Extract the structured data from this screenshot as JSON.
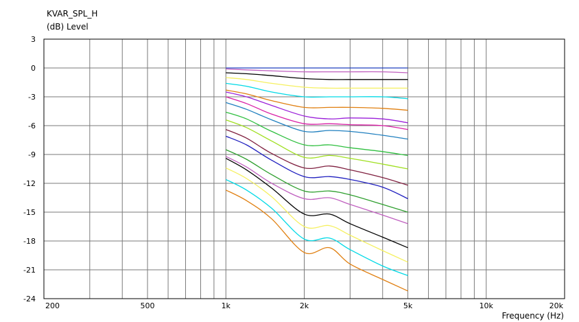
{
  "chart_data": {
    "type": "line",
    "title": "KVAR_SPL_H",
    "ylabel": "(dB)  Level",
    "xlabel": "Frequency  (Hz)",
    "x_scale": "log",
    "xlim": [
      200,
      20000
    ],
    "ylim": [
      -24,
      3
    ],
    "y_ticks": [
      3,
      0,
      -3,
      -6,
      -9,
      -12,
      -15,
      -18,
      -21,
      -24
    ],
    "x_tick_labels": [
      {
        "value": 200,
        "label": "200"
      },
      {
        "value": 500,
        "label": "500"
      },
      {
        "value": 1000,
        "label": "1k"
      },
      {
        "value": 2000,
        "label": "2k"
      },
      {
        "value": 5000,
        "label": "5k"
      },
      {
        "value": 10000,
        "label": "10k"
      },
      {
        "value": 20000,
        "label": "20k"
      }
    ],
    "grid": true,
    "x": [
      1000,
      1200,
      1500,
      2000,
      2500,
      3000,
      4000,
      5000
    ],
    "series": [
      {
        "color": "#1f3fbf",
        "values": [
          0.0,
          0.0,
          0.0,
          0.0,
          0.0,
          0.0,
          0.0,
          0.0
        ]
      },
      {
        "color": "#bf5fbf",
        "values": [
          -0.1,
          -0.2,
          -0.3,
          -0.4,
          -0.4,
          -0.4,
          -0.4,
          -0.5
        ]
      },
      {
        "color": "#000000",
        "values": [
          -0.5,
          -0.6,
          -0.8,
          -1.1,
          -1.2,
          -1.2,
          -1.2,
          -1.2
        ]
      },
      {
        "color": "#f5f05f",
        "values": [
          -1.0,
          -1.2,
          -1.6,
          -2.0,
          -2.1,
          -2.1,
          -2.1,
          -2.1
        ]
      },
      {
        "color": "#00d9e6",
        "values": [
          -1.6,
          -1.9,
          -2.5,
          -3.0,
          -3.0,
          -3.0,
          -3.0,
          -3.2
        ]
      },
      {
        "color": "#e07f10",
        "values": [
          -2.3,
          -2.7,
          -3.4,
          -4.1,
          -4.1,
          -4.1,
          -4.2,
          -4.4
        ]
      },
      {
        "color": "#9a1fd9",
        "values": [
          -2.5,
          -3.0,
          -3.9,
          -5.0,
          -5.3,
          -5.2,
          -5.3,
          -5.7
        ]
      },
      {
        "color": "#d91fa6",
        "values": [
          -3.0,
          -3.7,
          -4.8,
          -5.8,
          -5.8,
          -5.9,
          -6.0,
          -6.4
        ]
      },
      {
        "color": "#1f7fbf",
        "values": [
          -3.6,
          -4.3,
          -5.4,
          -6.6,
          -6.5,
          -6.6,
          -7.0,
          -7.4
        ]
      },
      {
        "color": "#2fbf3f",
        "values": [
          -4.6,
          -5.3,
          -6.6,
          -8.0,
          -8.0,
          -8.3,
          -8.7,
          -9.1
        ]
      },
      {
        "color": "#9fdf1f",
        "values": [
          -5.4,
          -6.2,
          -7.6,
          -9.3,
          -9.1,
          -9.4,
          -10.0,
          -10.5
        ]
      },
      {
        "color": "#7f1f3f",
        "values": [
          -6.4,
          -7.3,
          -8.9,
          -10.4,
          -10.2,
          -10.6,
          -11.4,
          -12.2
        ]
      },
      {
        "color": "#1f1fbf",
        "values": [
          -7.1,
          -8.0,
          -9.6,
          -11.3,
          -11.3,
          -11.6,
          -12.4,
          -13.6
        ]
      },
      {
        "color": "#2f9f2f",
        "values": [
          -8.5,
          -9.5,
          -11.1,
          -12.8,
          -12.8,
          -13.2,
          -14.2,
          -15.0
        ]
      },
      {
        "color": "#bf5fbf",
        "values": [
          -9.2,
          -10.3,
          -12.0,
          -13.6,
          -13.5,
          -14.2,
          -15.3,
          -16.2
        ]
      },
      {
        "color": "#000000",
        "values": [
          -9.4,
          -10.6,
          -12.5,
          -15.2,
          -15.2,
          -16.2,
          -17.6,
          -18.7
        ]
      },
      {
        "color": "#f5f05f",
        "values": [
          -10.4,
          -11.5,
          -13.4,
          -16.5,
          -16.4,
          -17.4,
          -19.0,
          -20.2
        ]
      },
      {
        "color": "#00d9e6",
        "values": [
          -11.6,
          -12.7,
          -14.6,
          -17.8,
          -17.7,
          -18.9,
          -20.6,
          -21.6
        ]
      },
      {
        "color": "#e07f10",
        "values": [
          -12.7,
          -13.8,
          -15.7,
          -19.2,
          -18.7,
          -20.4,
          -22.0,
          -23.2
        ]
      }
    ]
  }
}
